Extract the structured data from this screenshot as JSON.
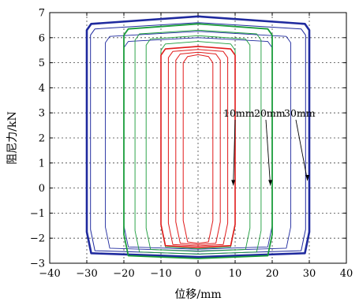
{
  "chart_data": {
    "type": "line",
    "xlabel": "位移/mm",
    "ylabel": "阻尼力/kN",
    "xlim": [
      -40,
      40
    ],
    "ylim": [
      -3,
      7
    ],
    "xticks": [
      -40,
      -30,
      -20,
      -10,
      0,
      10,
      20,
      30,
      40
    ],
    "yticks": [
      -3,
      -2,
      -1,
      0,
      1,
      2,
      3,
      4,
      5,
      6,
      7
    ],
    "xtick_labels": [
      "−40",
      "−30",
      "−20",
      "−10",
      "0",
      "10",
      "20",
      "30",
      "40"
    ],
    "ytick_labels": [
      "−3",
      "−2",
      "−1",
      "0",
      "1",
      "2",
      "3",
      "4",
      "5",
      "6",
      "7"
    ],
    "grid": true,
    "series": [
      {
        "color": "#1f2a9e",
        "loops": [
          {
            "amplitude": 30,
            "top": 6.6,
            "bottom": -2.65,
            "bulge": 0.25,
            "weight": 2.6
          },
          {
            "amplitude": 29,
            "top": 6.4,
            "bottom": -2.55,
            "bulge": 0.2,
            "weight": 1.0
          },
          {
            "amplitude": 25,
            "top": 6.1,
            "bottom": -2.45,
            "bulge": 0.15,
            "weight": 0.9
          },
          {
            "amplitude": 20,
            "top": 5.9,
            "bottom": -2.4,
            "bulge": 0.1,
            "weight": 0.9
          }
        ]
      },
      {
        "color": "#1a9c3a",
        "loops": [
          {
            "amplitude": 20,
            "top": 6.4,
            "bottom": -2.75,
            "bulge": 0.15,
            "weight": 1.8
          },
          {
            "amplitude": 17,
            "top": 6.2,
            "bottom": -2.6,
            "bulge": 0.1,
            "weight": 0.9
          },
          {
            "amplitude": 14,
            "top": 6.0,
            "bottom": -2.5,
            "bulge": 0.08,
            "weight": 0.9
          },
          {
            "amplitude": 10,
            "top": 5.8,
            "bottom": -2.4,
            "bulge": 0.05,
            "weight": 0.9
          }
        ]
      },
      {
        "color": "#e01a1a",
        "loops": [
          {
            "amplitude": 10,
            "top": 5.6,
            "bottom": -2.35,
            "bulge": 0.05,
            "weight": 1.6
          },
          {
            "amplitude": 8,
            "top": 5.5,
            "bottom": -2.3,
            "bulge": 0.03,
            "weight": 1.0
          },
          {
            "amplitude": 6,
            "top": 5.4,
            "bottom": -2.25,
            "bulge": 0.02,
            "weight": 1.0
          },
          {
            "amplitude": 4,
            "top": 5.3,
            "bottom": -2.2,
            "bulge": 0.02,
            "weight": 1.0
          }
        ]
      }
    ],
    "annotations": [
      {
        "text": "10mm",
        "point": [
          9.5,
          0.1
        ]
      },
      {
        "text": "20mm",
        "point": [
          19.5,
          0.1
        ]
      },
      {
        "text": "30mm",
        "point": [
          29.5,
          0.3
        ]
      }
    ]
  }
}
